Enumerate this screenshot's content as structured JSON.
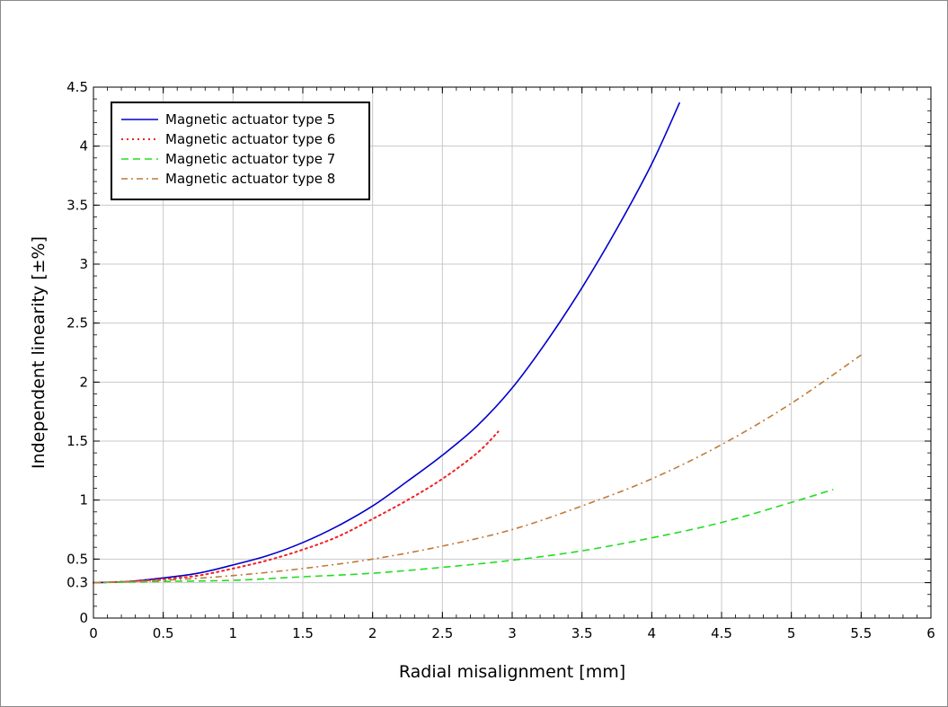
{
  "chart_data": {
    "type": "line",
    "xlabel": "Radial misalignment [mm]",
    "ylabel": "Independent linearity [±%]",
    "xlim": [
      0,
      6
    ],
    "ylim": [
      0,
      4.5
    ],
    "x_ticks": [
      "0",
      "0.5",
      "1",
      "1.5",
      "2",
      "2.5",
      "3",
      "3.5",
      "4",
      "4.5",
      "5",
      "5.5",
      "6"
    ],
    "y_ticks": [
      "0",
      "0.3",
      "0.5",
      "1",
      "1.5",
      "2",
      "2.5",
      "3",
      "3.5",
      "4",
      "4.5"
    ],
    "grid": true,
    "legend_position": "top-left",
    "series": [
      {
        "name": "Magnetic actuator type 5",
        "color": "#0000cc",
        "style": "solid",
        "x": [
          0,
          0.25,
          0.5,
          0.75,
          1,
          1.25,
          1.5,
          1.75,
          2,
          2.25,
          2.5,
          2.75,
          3,
          3.25,
          3.5,
          3.75,
          4,
          4.2
        ],
        "y": [
          0.3,
          0.31,
          0.34,
          0.38,
          0.45,
          0.53,
          0.64,
          0.78,
          0.95,
          1.16,
          1.38,
          1.63,
          1.95,
          2.35,
          2.8,
          3.3,
          3.85,
          4.37
        ]
      },
      {
        "name": "Magnetic actuator type 6",
        "color": "#ee2222",
        "style": "dotted",
        "x": [
          0,
          0.25,
          0.5,
          0.75,
          1,
          1.25,
          1.5,
          1.75,
          2,
          2.25,
          2.5,
          2.75,
          2.9
        ],
        "y": [
          0.3,
          0.31,
          0.33,
          0.36,
          0.42,
          0.49,
          0.58,
          0.69,
          0.84,
          1.0,
          1.18,
          1.4,
          1.58
        ]
      },
      {
        "name": "Magnetic actuator type 7",
        "color": "#22dd22",
        "style": "dashed",
        "x": [
          0,
          0.5,
          1,
          1.5,
          2,
          2.5,
          3,
          3.5,
          4,
          4.5,
          5,
          5.3
        ],
        "y": [
          0.3,
          0.31,
          0.32,
          0.35,
          0.38,
          0.43,
          0.49,
          0.57,
          0.68,
          0.81,
          0.98,
          1.09
        ]
      },
      {
        "name": "Magnetic actuator type 8",
        "color": "#c07a3a",
        "style": "dashdot",
        "x": [
          0,
          0.5,
          1,
          1.5,
          2,
          2.5,
          3,
          3.5,
          4,
          4.5,
          5,
          5.5
        ],
        "y": [
          0.3,
          0.32,
          0.36,
          0.42,
          0.5,
          0.61,
          0.75,
          0.95,
          1.18,
          1.47,
          1.82,
          2.23
        ]
      }
    ]
  }
}
